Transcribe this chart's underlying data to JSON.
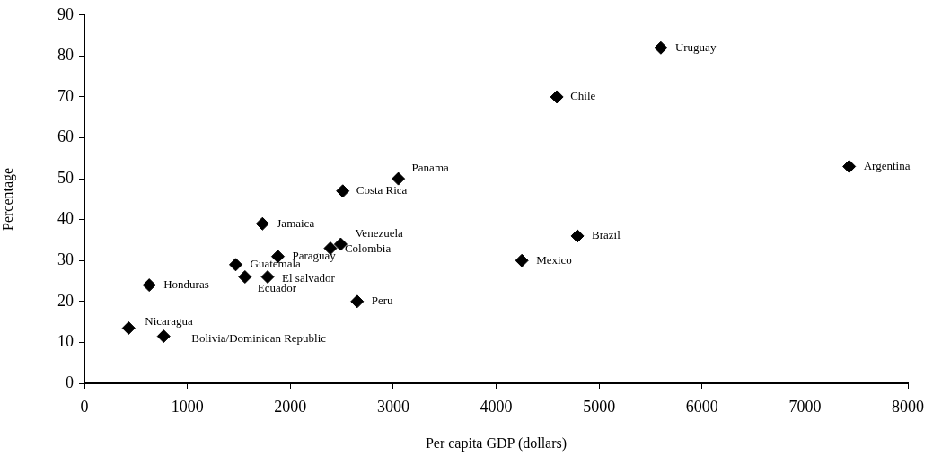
{
  "chart_data": {
    "type": "scatter",
    "xlabel": "Per capita GDP (dollars)",
    "ylabel": "Percentage",
    "marker": "diamond",
    "grid": false,
    "legend": false,
    "xlim": [
      0,
      8000
    ],
    "xticks": [
      0,
      1000,
      2000,
      3000,
      4000,
      5000,
      6000,
      7000,
      8000
    ],
    "ylim": [
      0,
      90
    ],
    "yticks": [
      0,
      10,
      20,
      30,
      40,
      50,
      60,
      70,
      80,
      90
    ],
    "series": [
      {
        "color": "#000000",
        "x": [
          5600,
          4590,
          7430,
          3050,
          2510,
          1730,
          2490,
          2390,
          1880,
          1470,
          1560,
          1780,
          630,
          2650,
          430,
          770,
          4790,
          4250
        ],
        "values": [
          82,
          70,
          53,
          50,
          47,
          39,
          34,
          33,
          31,
          29,
          26,
          26,
          24,
          20,
          13.5,
          11.5,
          36,
          30
        ]
      }
    ],
    "annotations": [
      {
        "text": "Uruguay",
        "x": 5600,
        "y": 82
      },
      {
        "text": "Chile",
        "x": 4590,
        "y": 70
      },
      {
        "text": "Argentina",
        "x": 7430,
        "y": 53
      },
      {
        "text": "Panama",
        "x": 3050,
        "y": 50
      },
      {
        "text": "Costa Rica",
        "x": 2510,
        "y": 47
      },
      {
        "text": "Jamaica",
        "x": 1730,
        "y": 39
      },
      {
        "text": "Venezuela",
        "x": 2490,
        "y": 34
      },
      {
        "text": "Colombia",
        "x": 2390,
        "y": 33
      },
      {
        "text": "Paraguay",
        "x": 1880,
        "y": 31
      },
      {
        "text": "Guatemala",
        "x": 1470,
        "y": 29
      },
      {
        "text": "Ecuador",
        "x": 1560,
        "y": 26
      },
      {
        "text": "El salvador",
        "x": 1780,
        "y": 26
      },
      {
        "text": "Honduras",
        "x": 630,
        "y": 24
      },
      {
        "text": "Peru",
        "x": 2650,
        "y": 20
      },
      {
        "text": "Nicaragua",
        "x": 430,
        "y": 13.5
      },
      {
        "text": "Bolivia/Dominican Republic",
        "x": 770,
        "y": 11.5
      },
      {
        "text": "Brazil",
        "x": 4790,
        "y": 36
      },
      {
        "text": "Mexico",
        "x": 4250,
        "y": 30
      }
    ]
  }
}
